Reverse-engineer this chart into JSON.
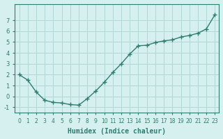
{
  "x": [
    0,
    1,
    2,
    3,
    4,
    5,
    6,
    7,
    8,
    9,
    10,
    11,
    12,
    13,
    14,
    15,
    16,
    17,
    18,
    19,
    20,
    21,
    22,
    23
  ],
  "y": [
    2.0,
    1.5,
    0.4,
    -0.35,
    -0.55,
    -0.6,
    -0.75,
    -0.8,
    -0.2,
    0.5,
    1.3,
    2.2,
    3.0,
    3.9,
    4.65,
    4.7,
    4.95,
    5.1,
    5.2,
    5.45,
    5.6,
    5.8,
    6.2,
    7.5
  ],
  "line_color": "#2d7d6e",
  "marker_color": "#2d7d6e",
  "bg_color": "#d6f0ef",
  "grid_color": "#b0d8d5",
  "xlabel": "Humidex (Indice chaleur)",
  "ylim": [
    -1.5,
    8.5
  ],
  "xlim": [
    -0.5,
    23.5
  ],
  "yticks": [
    -1,
    0,
    1,
    2,
    3,
    4,
    5,
    6,
    7
  ],
  "xtick_labels": [
    "0",
    "1",
    "2",
    "3",
    "4",
    "5",
    "6",
    "7",
    "8",
    "9",
    "10",
    "11",
    "12",
    "13",
    "14",
    "15",
    "16",
    "17",
    "18",
    "19",
    "20",
    "21",
    "22",
    "23"
  ],
  "font_color": "#2d7d6e"
}
